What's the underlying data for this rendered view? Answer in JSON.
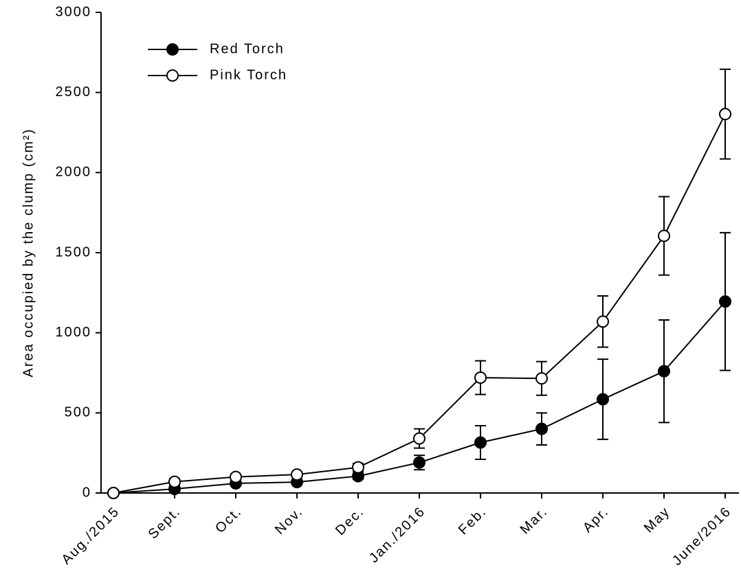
{
  "chart_data": {
    "type": "line",
    "y_label": "Area occupied by the clump (cm²)",
    "categories": [
      "Aug./2015",
      "Sept.",
      "Oct.",
      "Nov.",
      "Dec.",
      "Jan./2016",
      "Feb.",
      "Mar.",
      "Apr.",
      "May",
      "June/2016"
    ],
    "series": [
      {
        "name": "Red Torch",
        "color": "#000000",
        "marker_fill": "#000000",
        "values": [
          0,
          25,
          60,
          68,
          105,
          190,
          315,
          400,
          585,
          760,
          1195
        ],
        "errors": [
          0,
          10,
          10,
          15,
          20,
          45,
          105,
          100,
          250,
          320,
          430
        ]
      },
      {
        "name": "Pink Torch",
        "color": "#000000",
        "marker_fill": "#ffffff",
        "values": [
          0,
          70,
          100,
          115,
          160,
          340,
          720,
          715,
          1070,
          1605,
          2365
        ],
        "errors": [
          0,
          20,
          15,
          15,
          25,
          60,
          105,
          105,
          160,
          245,
          280
        ]
      }
    ],
    "ylim": [
      0,
      3000
    ],
    "yticks": [
      0,
      500,
      1000,
      1500,
      2000,
      2500,
      3000
    ],
    "grid": false,
    "legend": "top-left"
  }
}
